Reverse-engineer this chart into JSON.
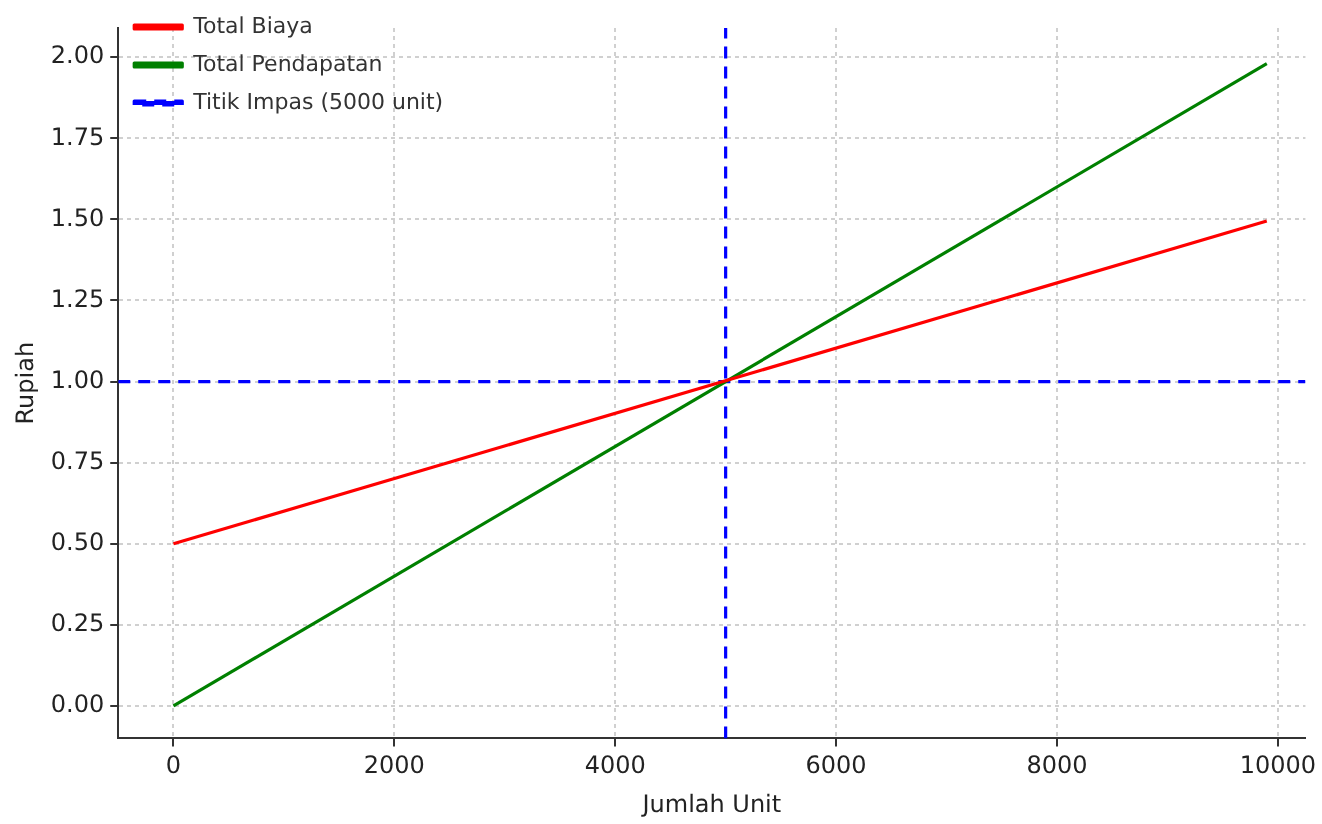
{
  "chart_data": {
    "type": "line",
    "xlabel": "Jumlah Unit",
    "ylabel": "Rupiah",
    "x": [
      0,
      9900
    ],
    "series": [
      {
        "name": "Total Biaya",
        "color": "#ff0000",
        "values": [
          0.5,
          1.495
        ]
      },
      {
        "name": "Total Pendapatan",
        "color": "#008000",
        "values": [
          0,
          1.98
        ]
      },
      {
        "name": "Titik Impas (5000 unit)",
        "color": "#0000ff",
        "line_style": "dashed",
        "x": [
          5000,
          5000
        ],
        "values": [
          -0.1,
          2.09
        ]
      }
    ],
    "ref_lines": [
      {
        "axis": "y",
        "value": 1.0,
        "label": null,
        "color": "#0000ff",
        "line_style": "dashed"
      }
    ],
    "xlim": [
      -500,
      10250
    ],
    "ylim": [
      -0.1,
      2.09
    ],
    "xticks": [
      0,
      2000,
      4000,
      6000,
      8000,
      10000
    ],
    "yticks": [
      {
        "value": 0,
        "label": "0.00"
      },
      {
        "value": 0.25,
        "label": "0.25"
      },
      {
        "value": 0.5,
        "label": "0.50"
      },
      {
        "value": 0.75,
        "label": "0.75"
      },
      {
        "value": 1,
        "label": "1.00"
      },
      {
        "value": 1.25,
        "label": "1.25"
      },
      {
        "value": 1.5,
        "label": "1.50"
      },
      {
        "value": 1.75,
        "label": "1.75"
      },
      {
        "value": 2,
        "label": "2.00"
      }
    ],
    "grid": true,
    "legend": "top left",
    "marker": "none",
    "line_style": "solid"
  }
}
